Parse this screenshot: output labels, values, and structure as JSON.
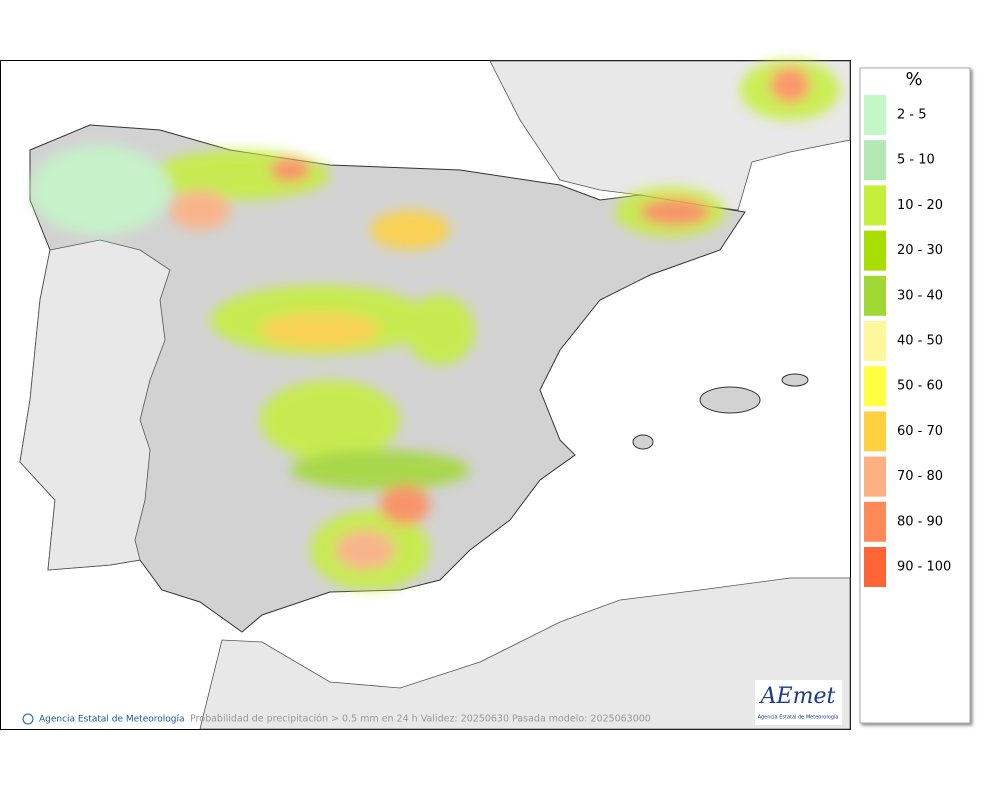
{
  "legend": {
    "title": "%",
    "items": [
      {
        "label": "2 - 5",
        "color": "#c4f7c8"
      },
      {
        "label": "5 - 10",
        "color": "#b2e8b4"
      },
      {
        "label": "10 - 20",
        "color": "#c6ef3a"
      },
      {
        "label": "20 - 30",
        "color": "#a8df00"
      },
      {
        "label": "30 - 40",
        "color": "#a2d834"
      },
      {
        "label": "40 - 50",
        "color": "#fff79c"
      },
      {
        "label": "50 - 60",
        "color": "#ffff44"
      },
      {
        "label": "60 - 70",
        "color": "#ffd140"
      },
      {
        "label": "70 - 80",
        "color": "#ffb080"
      },
      {
        "label": "80 - 90",
        "color": "#ff8a58"
      },
      {
        "label": "90 - 100",
        "color": "#ff6434"
      }
    ]
  },
  "footer": {
    "credit": "Agencia Estatal de Meteorología",
    "caption": "Probabilidad de precipitación > 0.5 mm en 24 h Validez: 20250630 Pasada modelo: 2025063000"
  },
  "logo": {
    "text": "AEmet",
    "subtitle": "Agencia Estatal de Meteorología"
  }
}
